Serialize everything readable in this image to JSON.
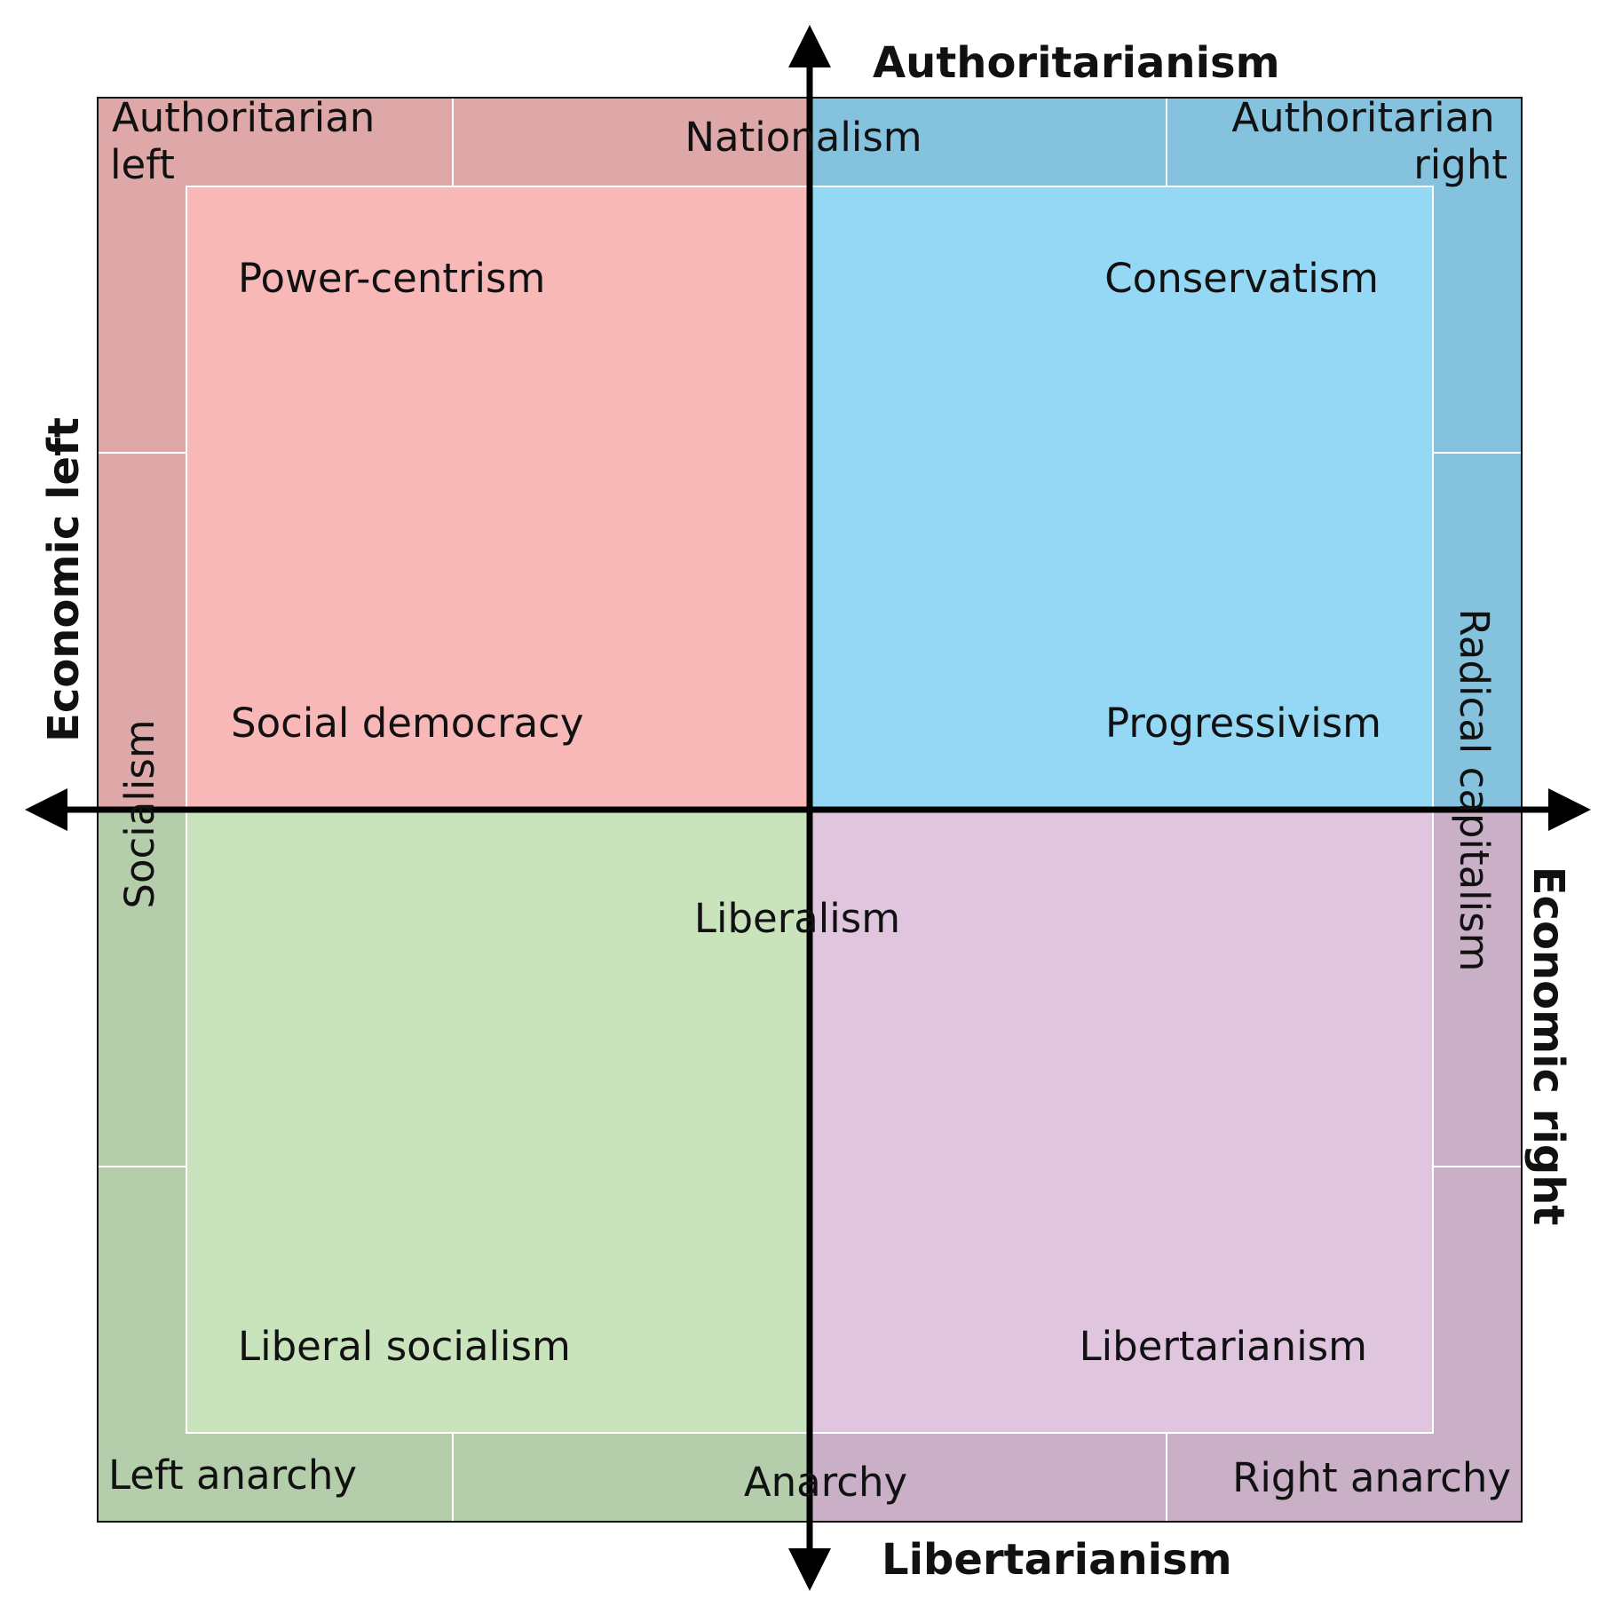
{
  "axes": {
    "top": "Authoritarianism",
    "bottom": "Libertarianism",
    "left": "Economic left",
    "right": "Economic right"
  },
  "corners": {
    "top_left": [
      "Authoritarian",
      "left"
    ],
    "top_right": [
      "Authoritarian",
      "right"
    ],
    "bottom_left": "Left anarchy",
    "bottom_right": "Right anarchy"
  },
  "edges": {
    "top": "Nationalism",
    "bottom": "Anarchy",
    "left": "Socialism",
    "right": "Radical capitalism"
  },
  "center": "Liberalism",
  "inner": {
    "top_left_upper": "Power-centrism",
    "top_left_lower": "Social democracy",
    "top_right_upper": "Conservatism",
    "top_right_lower": "Progressivism",
    "bottom_left": "Liberal socialism",
    "bottom_right": "Libertarianism"
  },
  "colors": {
    "outer_top_left": "#dfa8a8",
    "inner_top_left": "#f8b8b8",
    "outer_top_right": "#85c2de",
    "inner_top_right": "#95d8f5",
    "outer_bottom_left": "#b4cdaa",
    "inner_bottom_left": "#c9e3bd",
    "outer_bottom_right": "#c9b0c7",
    "inner_bottom_right": "#e0c5df",
    "axis": "#000000"
  }
}
